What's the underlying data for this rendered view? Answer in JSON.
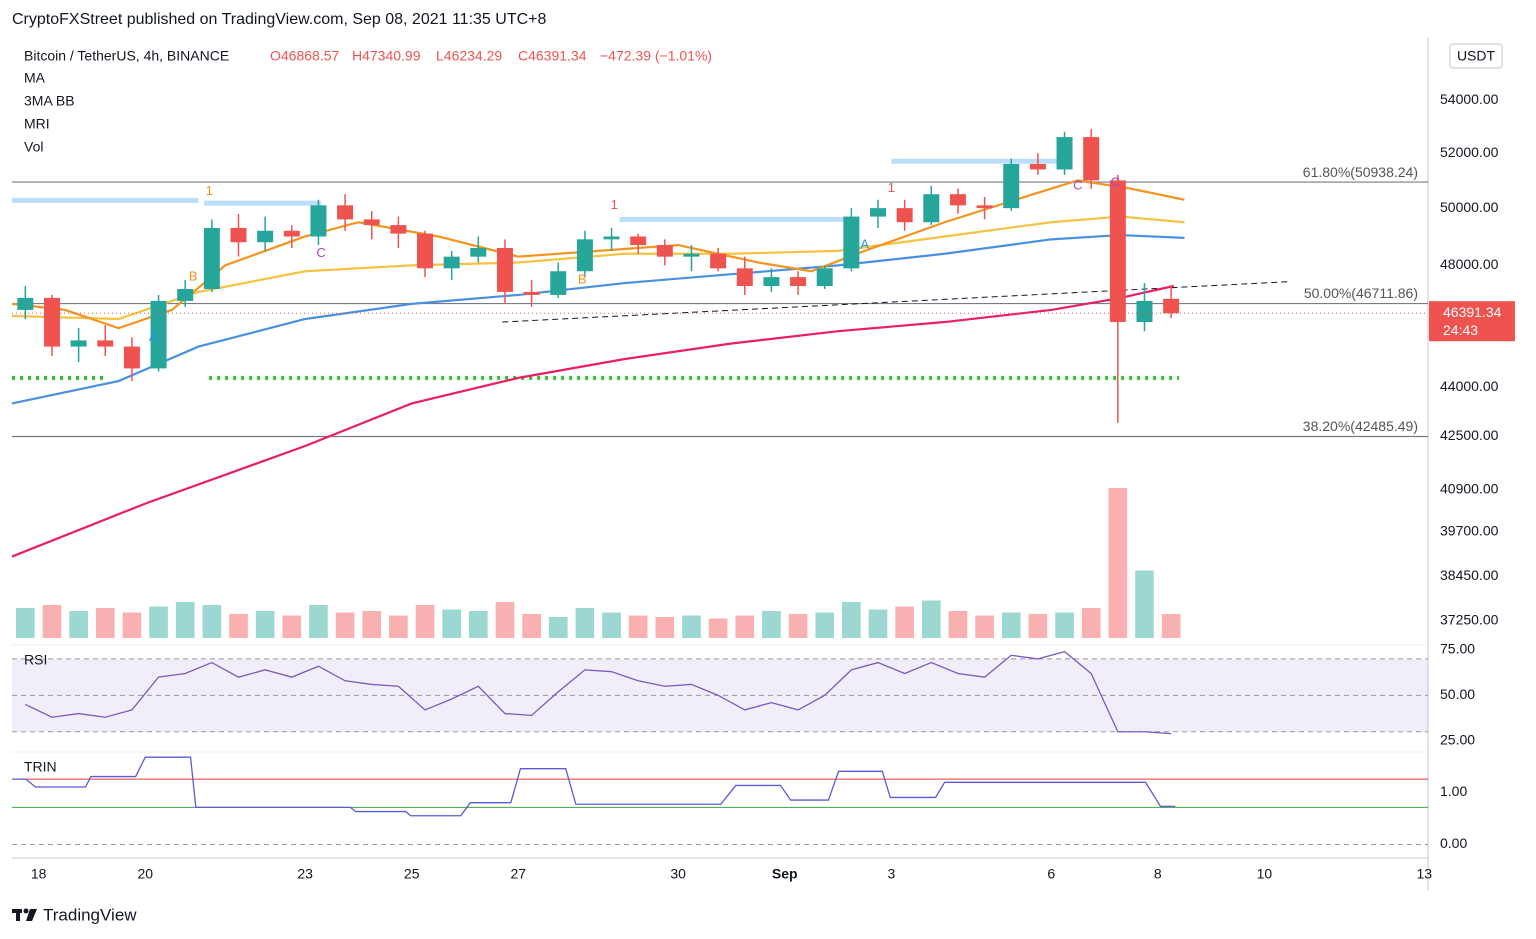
{
  "header": {
    "text": "CryptoFXStreet published on TradingView.com, Sep 08, 2021 11:35 UTC+8"
  },
  "footer": {
    "brand": "TradingView"
  },
  "chart_data": [
    {
      "type": "candlestick",
      "symbol": "Bitcoin / TetherUS, 4h, BINANCE",
      "ohlc_labels": [
        "O46868.57",
        "H47340.99",
        "L46234.29",
        "C46391.34",
        "−472.39 (−1.01%)"
      ],
      "indicators": [
        "MA",
        "3MA BB",
        "MRI",
        "Vol"
      ],
      "currency": "USDT",
      "x": [
        17.75,
        18.25,
        18.75,
        19.25,
        19.75,
        20.25,
        20.75,
        21.25,
        21.75,
        22.25,
        22.75,
        23.25,
        23.75,
        24.25,
        24.75,
        25.25,
        25.75,
        26.25,
        26.75,
        27.25,
        27.75,
        28.25,
        28.75,
        29.25,
        29.75,
        30.25,
        30.75,
        31.25,
        31.75,
        32.25,
        32.75,
        33.25,
        33.75,
        34.25,
        34.75,
        35.25,
        35.75,
        36.25,
        36.75,
        37.25,
        37.75,
        38.25,
        38.75,
        39.25
      ],
      "open": [
        46500,
        46900,
        45300,
        45500,
        45300,
        44600,
        46800,
        47200,
        49300,
        48800,
        49200,
        49000,
        50100,
        49600,
        49400,
        49100,
        47900,
        48300,
        48600,
        47100,
        47000,
        47800,
        48900,
        49000,
        48700,
        48300,
        48400,
        47900,
        47300,
        47600,
        47300,
        47900,
        49700,
        50000,
        49500,
        50500,
        50100,
        50000,
        51600,
        51400,
        52600,
        51000,
        46100,
        46868.57
      ],
      "high": [
        47300,
        47000,
        45900,
        46000,
        45600,
        47000,
        47500,
        49600,
        49800,
        49700,
        49400,
        50300,
        50500,
        49900,
        49700,
        49200,
        48500,
        49000,
        48900,
        47500,
        48100,
        49200,
        49300,
        49100,
        48900,
        48700,
        48600,
        48300,
        47900,
        47800,
        48000,
        50000,
        50300,
        50300,
        50800,
        50700,
        50400,
        51800,
        52000,
        52800,
        52900,
        51200,
        47400,
        47340.99
      ],
      "low": [
        46200,
        45000,
        44800,
        45000,
        44200,
        44500,
        46600,
        47100,
        48300,
        48500,
        48600,
        48700,
        49200,
        48900,
        48600,
        47600,
        47500,
        48100,
        46700,
        46600,
        46900,
        47600,
        48500,
        48400,
        48000,
        47800,
        47800,
        47000,
        47100,
        47000,
        47200,
        47800,
        49300,
        49200,
        49400,
        49800,
        49600,
        49900,
        51200,
        51200,
        50700,
        42900,
        45800,
        46234.29
      ],
      "close": [
        46900,
        45300,
        45500,
        45300,
        44600,
        46800,
        47200,
        49300,
        48800,
        49200,
        49000,
        50100,
        49600,
        49400,
        49100,
        47900,
        48300,
        48600,
        47100,
        47000,
        47800,
        48900,
        49000,
        48700,
        48300,
        48400,
        47900,
        47300,
        47600,
        47300,
        47900,
        49700,
        50000,
        49500,
        50500,
        50100,
        50000,
        51600,
        51400,
        52600,
        51000,
        46100,
        46800,
        46391.34
      ],
      "volume": [
        20,
        22,
        18,
        20,
        17,
        21,
        24,
        22,
        16,
        18,
        15,
        22,
        17,
        18,
        15,
        22,
        19,
        18,
        24,
        16,
        14,
        20,
        17,
        15,
        14,
        15,
        13,
        15,
        18,
        16,
        17,
        24,
        19,
        21,
        25,
        18,
        15,
        17,
        16,
        17,
        20,
        100,
        45,
        16
      ],
      "vlim": [
        0,
        100
      ],
      "up_color": "#26a69a",
      "down_color": "#ef5350",
      "xlim": [
        17.5,
        44.07
      ],
      "xticks": [
        18,
        20,
        23,
        25,
        27,
        30,
        {
          "value": 32,
          "label": "Sep"
        },
        {
          "value": 34,
          "label": "3"
        },
        {
          "value": 37,
          "label": "6"
        },
        {
          "value": 39,
          "label": "8"
        },
        {
          "value": 41,
          "label": "10"
        },
        {
          "value": 44,
          "label": "13"
        }
      ],
      "ylim": [
        36800,
        56450
      ],
      "log_scale": true,
      "yticks": [
        {
          "value": 37250,
          "label": "37250.00"
        },
        {
          "value": 38450,
          "label": "38450.00"
        },
        {
          "value": 39700,
          "label": "39700.00"
        },
        {
          "value": 40900,
          "label": "40900.00"
        },
        {
          "value": 42500,
          "label": "42500.00"
        },
        {
          "value": 44000,
          "label": "44000.00"
        },
        {
          "value": 48000,
          "label": "48000.00"
        },
        {
          "value": 50000,
          "label": "50000.00"
        },
        {
          "value": 52000,
          "label": "52000.00"
        },
        {
          "value": 54000,
          "label": "54000.00"
        }
      ],
      "last_price_label": "46391.34",
      "countdown": "24:43",
      "moving_averages": [
        {
          "color": "#e91e63",
          "x": [
            17.5,
            20,
            23,
            25,
            27,
            29,
            31,
            33,
            35,
            37,
            38.3,
            39.3
          ],
          "values": [
            39000,
            40500,
            42200,
            43500,
            44300,
            44900,
            45400,
            45800,
            46100,
            46500,
            46900,
            47300
          ]
        },
        {
          "color": "#4a90e2",
          "x": [
            17.5,
            19.5,
            21,
            23,
            25,
            27,
            29,
            31,
            33,
            35,
            37,
            38.3,
            39.5
          ],
          "values": [
            43500,
            44200,
            45300,
            46200,
            46700,
            47000,
            47400,
            47700,
            48000,
            48400,
            48900,
            49050,
            48950
          ]
        },
        {
          "color": "#f7c242",
          "x": [
            17.5,
            19.5,
            21,
            23,
            25,
            27,
            29,
            31,
            33,
            35,
            37,
            38.3,
            39.5
          ],
          "values": [
            46300,
            46200,
            47100,
            47800,
            48000,
            48100,
            48400,
            48400,
            48500,
            49000,
            49500,
            49700,
            49500
          ]
        },
        {
          "color": "#f5931e",
          "x": [
            17.5,
            18.5,
            19.5,
            20.5,
            21.5,
            23,
            24,
            25.5,
            27,
            28.5,
            30,
            31.5,
            32.5,
            33.5,
            35,
            36.5,
            37.5,
            38.5,
            39.5
          ],
          "values": [
            46700,
            46500,
            45900,
            46500,
            48000,
            49000,
            49500,
            49000,
            48300,
            48500,
            48700,
            48100,
            47800,
            48500,
            49500,
            50400,
            51000,
            50700,
            50300
          ]
        }
      ],
      "fib_levels": [
        {
          "value": 50938.24,
          "label": "61.80%(50938.24)"
        },
        {
          "value": 46711.86,
          "label": "50.00%(46711.86)"
        },
        {
          "value": 42485.49,
          "label": "38.20%(42485.49)"
        }
      ],
      "support_lines": [
        {
          "price": 44300,
          "x": [
            17.5,
            19.3
          ]
        },
        {
          "price": 44300,
          "x": [
            21.2,
            39.4
          ]
        }
      ],
      "zones": [
        {
          "price": 50280,
          "x": [
            17.5,
            21.0
          ]
        },
        {
          "price": 50180,
          "x": [
            21.1,
            23.3
          ]
        },
        {
          "price": 49600,
          "x": [
            28.9,
            33.4
          ]
        },
        {
          "price": 51700,
          "x": [
            34.0,
            37.2
          ]
        }
      ],
      "trend_line": {
        "x": [
          26.7,
          41.5
        ],
        "values": [
          46100,
          47450
        ]
      },
      "markers": [
        {
          "x": 21.2,
          "value": 50600,
          "label": "1",
          "color": "#f5931e"
        },
        {
          "x": 20.9,
          "value": 47600,
          "label": "B",
          "color": "#f5931e"
        },
        {
          "x": 20.15,
          "value": 45600,
          "label": "A",
          "color": "#2196f3"
        },
        {
          "x": 23.3,
          "value": 48400,
          "label": "C",
          "color": "#ab47bc"
        },
        {
          "x": 28.8,
          "value": 50100,
          "label": "1",
          "color": "#ef5350"
        },
        {
          "x": 28.2,
          "value": 47500,
          "label": "B",
          "color": "#f5931e"
        },
        {
          "x": 33.5,
          "value": 48700,
          "label": "A",
          "color": "#2196f3"
        },
        {
          "x": 34.0,
          "value": 50700,
          "label": "1",
          "color": "#ef5350"
        },
        {
          "x": 37.5,
          "value": 50800,
          "label": "C",
          "color": "#ab47bc"
        },
        {
          "x": 38.2,
          "value": 50900,
          "label": "C",
          "color": "#ab47bc"
        }
      ]
    },
    {
      "type": "line",
      "title": "RSI",
      "color": "#7e57c2",
      "values": [
        45,
        38,
        40,
        38,
        42,
        60,
        62,
        68,
        60,
        64,
        60,
        66,
        58,
        56,
        55,
        42,
        48,
        55,
        40,
        39,
        52,
        64,
        63,
        58,
        55,
        56,
        50,
        42,
        46,
        42,
        50,
        64,
        68,
        62,
        68,
        62,
        60,
        72,
        70,
        74,
        62,
        30,
        30,
        29
      ],
      "ylim": [
        20,
        76
      ],
      "yticks": [
        {
          "value": 25,
          "label": "25.00"
        },
        {
          "value": 50,
          "label": "50.00"
        },
        {
          "value": 75,
          "label": "75.00"
        }
      ],
      "upper": 70,
      "middle": 50,
      "lower": 30
    },
    {
      "type": "line",
      "title": "TRIN",
      "color": "#5b5bd6",
      "x": [
        17.51,
        17.76,
        17.94,
        18.88,
        18.98,
        19.82,
        20.0,
        20.85,
        20.95,
        23.85,
        23.95,
        24.89,
        24.98,
        25.92,
        26.1,
        26.86,
        27.04,
        27.89,
        28.08,
        30.8,
        31.08,
        31.92,
        32.11,
        32.82,
        33.01,
        33.83,
        33.98,
        34.83,
        35.0,
        38.77,
        39.05,
        39.33
      ],
      "values": [
        1.25,
        1.25,
        1.1,
        1.1,
        1.3,
        1.3,
        1.67,
        1.67,
        0.71,
        0.71,
        0.63,
        0.63,
        0.55,
        0.55,
        0.8,
        0.8,
        1.45,
        1.45,
        0.77,
        0.77,
        1.13,
        1.13,
        0.85,
        0.85,
        1.4,
        1.4,
        0.9,
        0.9,
        1.19,
        1.19,
        0.73,
        0.73
      ],
      "ylim": [
        -0.2,
        1.75
      ],
      "yticks": [
        {
          "value": 0,
          "label": "0.00"
        },
        {
          "value": 1,
          "label": "1.00"
        }
      ],
      "upper": 1.25,
      "lower": 0.71
    }
  ]
}
